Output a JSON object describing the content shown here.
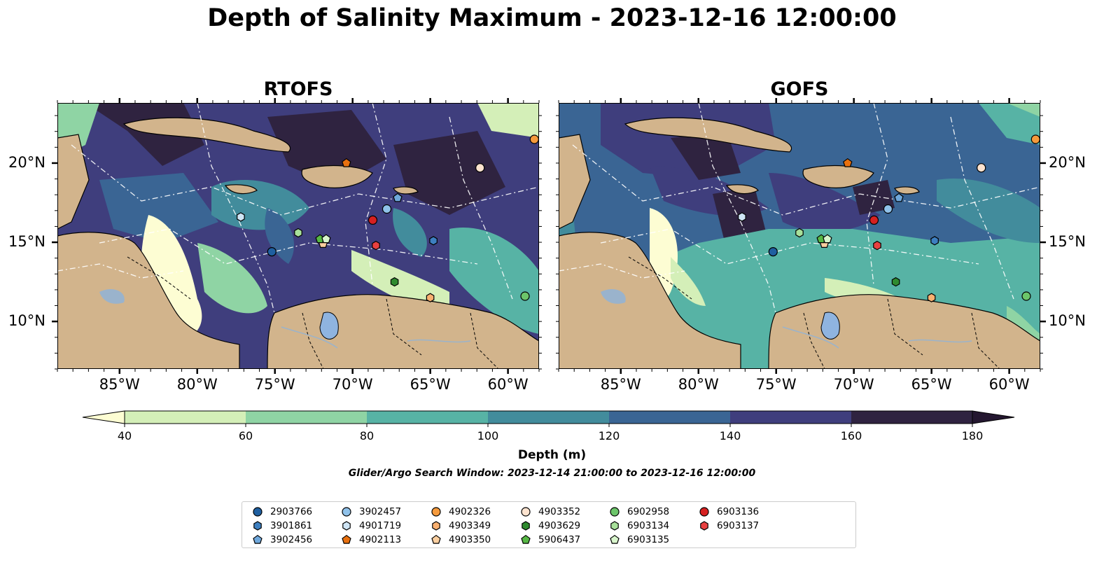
{
  "figure": {
    "title": "Depth of Salinity Maximum - 2023-12-16 12:00:00",
    "panels": [
      {
        "title": "RTOFS"
      },
      {
        "title": "GOFS"
      }
    ],
    "lon_ticks": [
      "85°W",
      "80°W",
      "75°W",
      "70°W",
      "65°W",
      "60°W"
    ],
    "lat_ticks": [
      "20°N",
      "15°N",
      "10°N"
    ],
    "colorbar": {
      "label": "Depth (m)",
      "ticks": [
        "40",
        "60",
        "80",
        "100",
        "120",
        "140",
        "160",
        "180"
      ],
      "colors": [
        "#fdfdd3",
        "#d4efb8",
        "#8fd4a4",
        "#57b3a5",
        "#428c9c",
        "#3a6594",
        "#3f3e7d",
        "#2f2340",
        "#241730"
      ]
    },
    "search_window": "Glider/Argo Search Window: 2023-12-14 21:00:00 to 2023-12-16 12:00:00",
    "land_color": "#d2b48c",
    "lake_color": "#8fb4e0"
  },
  "chart_data": {
    "type": "scatter",
    "xlabel": "",
    "ylabel": "",
    "xlim": [
      -89,
      -58
    ],
    "ylim": [
      7,
      23.8
    ],
    "series": [
      {
        "name": "2903766",
        "marker": "circle",
        "color": "#1f5fa0",
        "points": [
          [
            -75.2,
            14.4
          ]
        ]
      },
      {
        "name": "3901861",
        "marker": "hexagon",
        "color": "#3d7fc0",
        "points": [
          [
            -64.8,
            15.1
          ]
        ]
      },
      {
        "name": "3902456",
        "marker": "pentagon",
        "color": "#6fa8dc",
        "points": [
          [
            -67.1,
            17.8
          ]
        ]
      },
      {
        "name": "3902457",
        "marker": "circle",
        "color": "#90c2ea",
        "points": [
          [
            -67.8,
            17.1
          ]
        ]
      },
      {
        "name": "4901719",
        "marker": "hexagon",
        "color": "#cfe5f5",
        "points": [
          [
            -77.2,
            16.6
          ]
        ]
      },
      {
        "name": "4902113",
        "marker": "pentagon",
        "color": "#e8700f",
        "points": [
          [
            -70.4,
            20.0
          ]
        ]
      },
      {
        "name": "4902326",
        "marker": "circle",
        "color": "#f59a3c",
        "points": [
          [
            -58.3,
            21.5
          ]
        ]
      },
      {
        "name": "4903349",
        "marker": "hexagon",
        "color": "#f9b070",
        "points": [
          [
            -65.0,
            11.5
          ]
        ]
      },
      {
        "name": "4903350",
        "marker": "pentagon",
        "color": "#fbcfa0",
        "points": [
          [
            -71.9,
            14.9
          ]
        ]
      },
      {
        "name": "4903352",
        "marker": "circle",
        "color": "#fde3cf",
        "points": [
          [
            -61.8,
            19.7
          ]
        ]
      },
      {
        "name": "4903629",
        "marker": "hexagon",
        "color": "#2f8a2f",
        "points": [
          [
            -67.3,
            12.5
          ]
        ]
      },
      {
        "name": "5906437",
        "marker": "pentagon",
        "color": "#57b845",
        "points": [
          [
            -72.1,
            15.2
          ]
        ]
      },
      {
        "name": "6902958",
        "marker": "circle",
        "color": "#6cc56a",
        "points": [
          [
            -58.9,
            11.6
          ]
        ]
      },
      {
        "name": "6903134",
        "marker": "hexagon",
        "color": "#a8e09a",
        "points": [
          [
            -73.5,
            15.6
          ]
        ]
      },
      {
        "name": "6903135",
        "marker": "pentagon",
        "color": "#d8f5cc",
        "points": [
          [
            -71.7,
            15.2
          ]
        ]
      },
      {
        "name": "6903136",
        "marker": "circle",
        "color": "#d62020",
        "points": [
          [
            -68.7,
            16.4
          ]
        ]
      },
      {
        "name": "6903137",
        "marker": "hexagon",
        "color": "#e84040",
        "points": [
          [
            -68.5,
            14.8
          ]
        ]
      }
    ]
  }
}
